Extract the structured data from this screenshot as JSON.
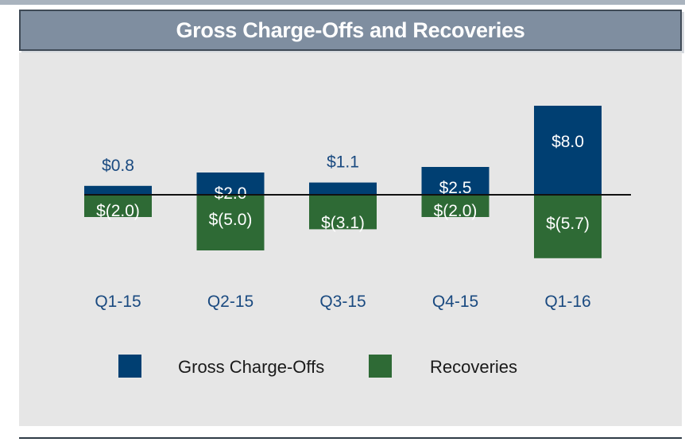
{
  "title": "Gross Charge-Offs and Recoveries",
  "colors": {
    "gross": "#003f72",
    "recoveries": "#2e6a35",
    "label_outside": "#1a4a80",
    "label_inside": "#ffffff",
    "title_bg": "#7f8ea0",
    "panel_bg": "#e6e6e6"
  },
  "legend": {
    "gross_label": "Gross Charge-Offs",
    "recoveries_label": "Recoveries"
  },
  "chart_data": {
    "type": "bar",
    "stacked": "diverging",
    "title": "Gross Charge-Offs and Recoveries",
    "categories": [
      "Q1-15",
      "Q2-15",
      "Q3-15",
      "Q4-15",
      "Q1-16"
    ],
    "series": [
      {
        "name": "Gross Charge-Offs",
        "values": [
          0.8,
          2.0,
          1.1,
          2.5,
          8.0
        ],
        "labels": [
          "$0.8",
          "$2.0",
          "$1.1",
          "$2.5",
          "$8.0"
        ],
        "label_inside": [
          false,
          true,
          false,
          true,
          true
        ]
      },
      {
        "name": "Recoveries",
        "values": [
          -2.0,
          -5.0,
          -3.1,
          -2.0,
          -5.7
        ],
        "labels": [
          "$(2.0)",
          "$(5.0)",
          "$(3.1)",
          "$(2.0)",
          "$(5.7)"
        ],
        "label_inside": [
          true,
          true,
          true,
          true,
          true
        ]
      }
    ],
    "ylim": [
      -5.7,
      8.0
    ],
    "legend_position": "bottom",
    "grid": false
  }
}
